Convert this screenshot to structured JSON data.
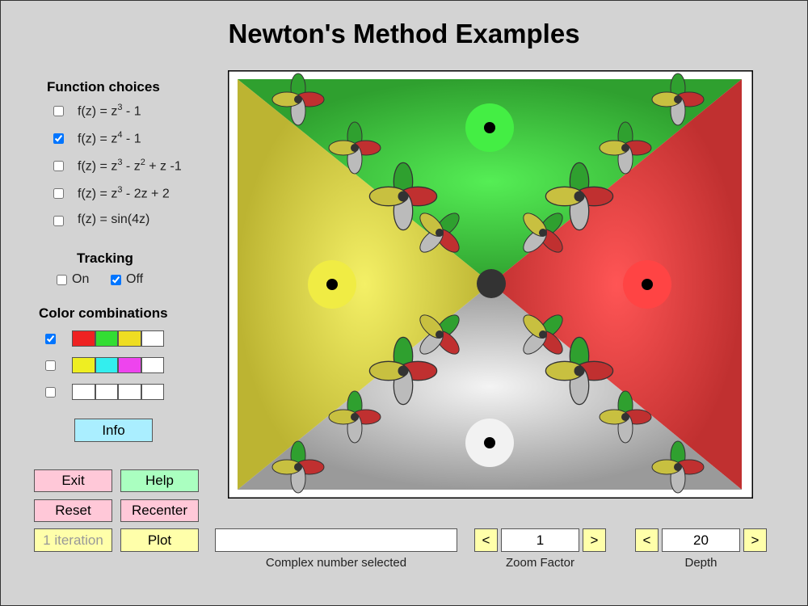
{
  "title": "Newton's Method Examples",
  "function_choices": {
    "heading": "Function choices",
    "options": [
      {
        "parts": [
          "f(z) = z",
          "3",
          " - 1"
        ],
        "checked": false
      },
      {
        "parts": [
          "f(z) = z",
          "4",
          " - 1"
        ],
        "checked": true
      },
      {
        "parts": [
          "f(z) = z",
          "3",
          " - z",
          "2",
          " + z -1"
        ],
        "checked": false
      },
      {
        "parts": [
          "f(z) = z",
          "3",
          " - 2z + 2"
        ],
        "checked": false
      },
      {
        "parts": [
          "f(z) = sin(4z)"
        ],
        "checked": false
      }
    ]
  },
  "tracking": {
    "heading": "Tracking",
    "options": [
      {
        "label": "On",
        "checked": false
      },
      {
        "label": "Off",
        "checked": true
      }
    ]
  },
  "color_combinations": {
    "heading": "Color combinations",
    "options": [
      {
        "colors": [
          "#ee2222",
          "#33dd33",
          "#eedd22",
          "#ffffff"
        ],
        "checked": true
      },
      {
        "colors": [
          "#eeee22",
          "#33eeee",
          "#ee44ee",
          "#ffffff"
        ],
        "checked": false
      },
      {
        "colors": [
          "#ffffff",
          "#ffffff",
          "#ffffff",
          "#ffffff"
        ],
        "checked": false
      }
    ]
  },
  "buttons": {
    "info": "Info",
    "exit": "Exit",
    "help": "Help",
    "reset": "Reset",
    "recenter": "Recenter",
    "iteration": "1 iteration",
    "plot": "Plot"
  },
  "complex_number": {
    "label": "Complex number selected"
  },
  "zoom": {
    "label": "Zoom Factor",
    "value": 1,
    "prev": "<",
    "next": ">"
  },
  "depth": {
    "label": "Depth",
    "value": 20,
    "prev": "<",
    "next": ">"
  }
}
